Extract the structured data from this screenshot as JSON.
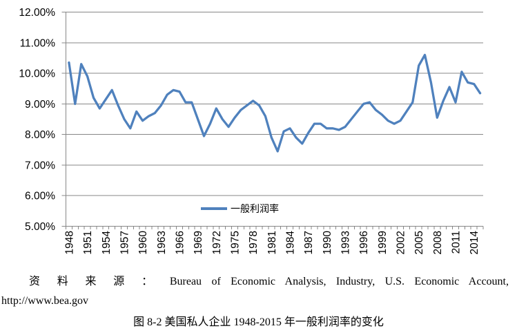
{
  "figure": {
    "source_note_line1": "资 料 来 源 ： Bureau of Economic Analysis, Industry, U.S. Economic Account,",
    "source_note_line2": "http://www.bea.gov",
    "caption": "图 8-2 美国私人企业 1948-2015 年一般利润率的变化"
  },
  "chart_data": {
    "type": "line",
    "title": "",
    "xlabel": "",
    "ylabel": "",
    "legend": "一般利润率",
    "legend_position": "inside-bottom-center",
    "grid": true,
    "line_color": "#4F81BD",
    "gridline_color": "#878787",
    "y_axis": {
      "min": 5,
      "max": 12,
      "step": 1,
      "tick_format": "0.00%",
      "ylim": [
        5,
        12
      ]
    },
    "x_tick_every": 3,
    "x_tick_labels": [
      "1948",
      "1951",
      "1954",
      "1957",
      "1960",
      "1963",
      "1966",
      "1969",
      "1972",
      "1975",
      "1978",
      "1981",
      "1984",
      "1987",
      "1990",
      "1993",
      "1996",
      "1999",
      "2002",
      "2005",
      "2008",
      "2011",
      "2014"
    ],
    "x": [
      1948,
      1949,
      1950,
      1951,
      1952,
      1953,
      1954,
      1955,
      1956,
      1957,
      1958,
      1959,
      1960,
      1961,
      1962,
      1963,
      1964,
      1965,
      1966,
      1967,
      1968,
      1969,
      1970,
      1971,
      1972,
      1973,
      1974,
      1975,
      1976,
      1977,
      1978,
      1979,
      1980,
      1981,
      1982,
      1983,
      1984,
      1985,
      1986,
      1987,
      1988,
      1989,
      1990,
      1991,
      1992,
      1993,
      1994,
      1995,
      1996,
      1997,
      1998,
      1999,
      2000,
      2001,
      2002,
      2003,
      2004,
      2005,
      2006,
      2007,
      2008,
      2009,
      2010,
      2011,
      2012,
      2013,
      2014,
      2015
    ],
    "values": [
      10.35,
      9.0,
      10.3,
      9.9,
      9.2,
      8.85,
      9.15,
      9.45,
      8.95,
      8.5,
      8.2,
      8.75,
      8.45,
      8.6,
      8.7,
      8.95,
      9.3,
      9.45,
      9.4,
      9.05,
      9.05,
      8.5,
      7.95,
      8.35,
      8.85,
      8.5,
      8.25,
      8.55,
      8.8,
      8.95,
      9.1,
      8.95,
      8.6,
      7.9,
      7.45,
      8.1,
      8.2,
      7.9,
      7.7,
      8.05,
      8.35,
      8.35,
      8.2,
      8.2,
      8.15,
      8.25,
      8.5,
      8.75,
      9.0,
      9.05,
      8.8,
      8.65,
      8.45,
      8.35,
      8.45,
      8.75,
      9.05,
      10.25,
      10.6,
      9.7,
      8.55,
      9.1,
      9.55,
      9.05,
      10.05,
      9.7,
      9.65,
      9.35
    ]
  }
}
